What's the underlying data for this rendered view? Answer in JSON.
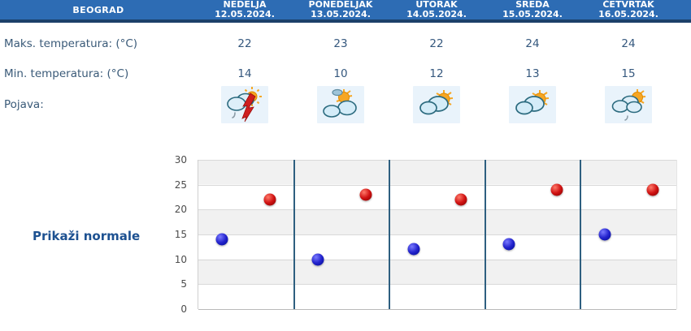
{
  "location": "BEOGRAD",
  "table": {
    "rows": {
      "max_label": "Maks. temperatura: (°C)",
      "min_label": "Min. temperatura: (°C)",
      "pojava_label": "Pojava:"
    },
    "days": [
      {
        "name": "NEDELJA",
        "date": "12.05.2024.",
        "max": "22",
        "min": "14",
        "icon": "sun-cloud-thunderstorm-icon"
      },
      {
        "name": "PONEDELJAK",
        "date": "13.05.2024.",
        "max": "23",
        "min": "10",
        "icon": "sun-with-clouds-icon"
      },
      {
        "name": "UTORAK",
        "date": "14.05.2024.",
        "max": "22",
        "min": "12",
        "icon": "sun-behind-cloud-icon"
      },
      {
        "name": "SREDA",
        "date": "15.05.2024.",
        "max": "24",
        "min": "13",
        "icon": "sun-behind-cloud-icon"
      },
      {
        "name": "ČETVRTAK",
        "date": "16.05.2024.",
        "max": "24",
        "min": "15",
        "icon": "sun-cloud-light-rain-icon"
      }
    ]
  },
  "chart_button_label": "Prikaži normale",
  "chart_data": {
    "type": "scatter",
    "title": "",
    "categories": [
      "NEDELJA 12.05.2024.",
      "PONEDELJAK 13.05.2024.",
      "UTORAK 14.05.2024.",
      "SREDA 15.05.2024.",
      "ČETVRTAK 16.05.2024."
    ],
    "series": [
      {
        "name": "Min. temperatura (°C)",
        "color": "#2323cd",
        "x_offset": 0.25,
        "values": [
          14,
          10,
          12,
          13,
          15
        ]
      },
      {
        "name": "Maks. temperatura (°C)",
        "color": "#d01212",
        "x_offset": 0.75,
        "values": [
          22,
          23,
          22,
          24,
          24
        ]
      }
    ],
    "ylim": [
      0,
      30
    ],
    "yticks": [
      0,
      5,
      10,
      15,
      20,
      25,
      30
    ],
    "grid": true,
    "band_colors": [
      "#f1f1f1",
      "#ffffff"
    ],
    "separator_color": "#2e5f80"
  },
  "colors": {
    "header_bg": "#2d6cb4",
    "header_border": "#1c4069",
    "header_text": "#ffffff",
    "label_text": "#3a5a78",
    "value_text": "#35587e",
    "link_text": "#1d5191",
    "icon_bg": "#e9f3fb"
  }
}
